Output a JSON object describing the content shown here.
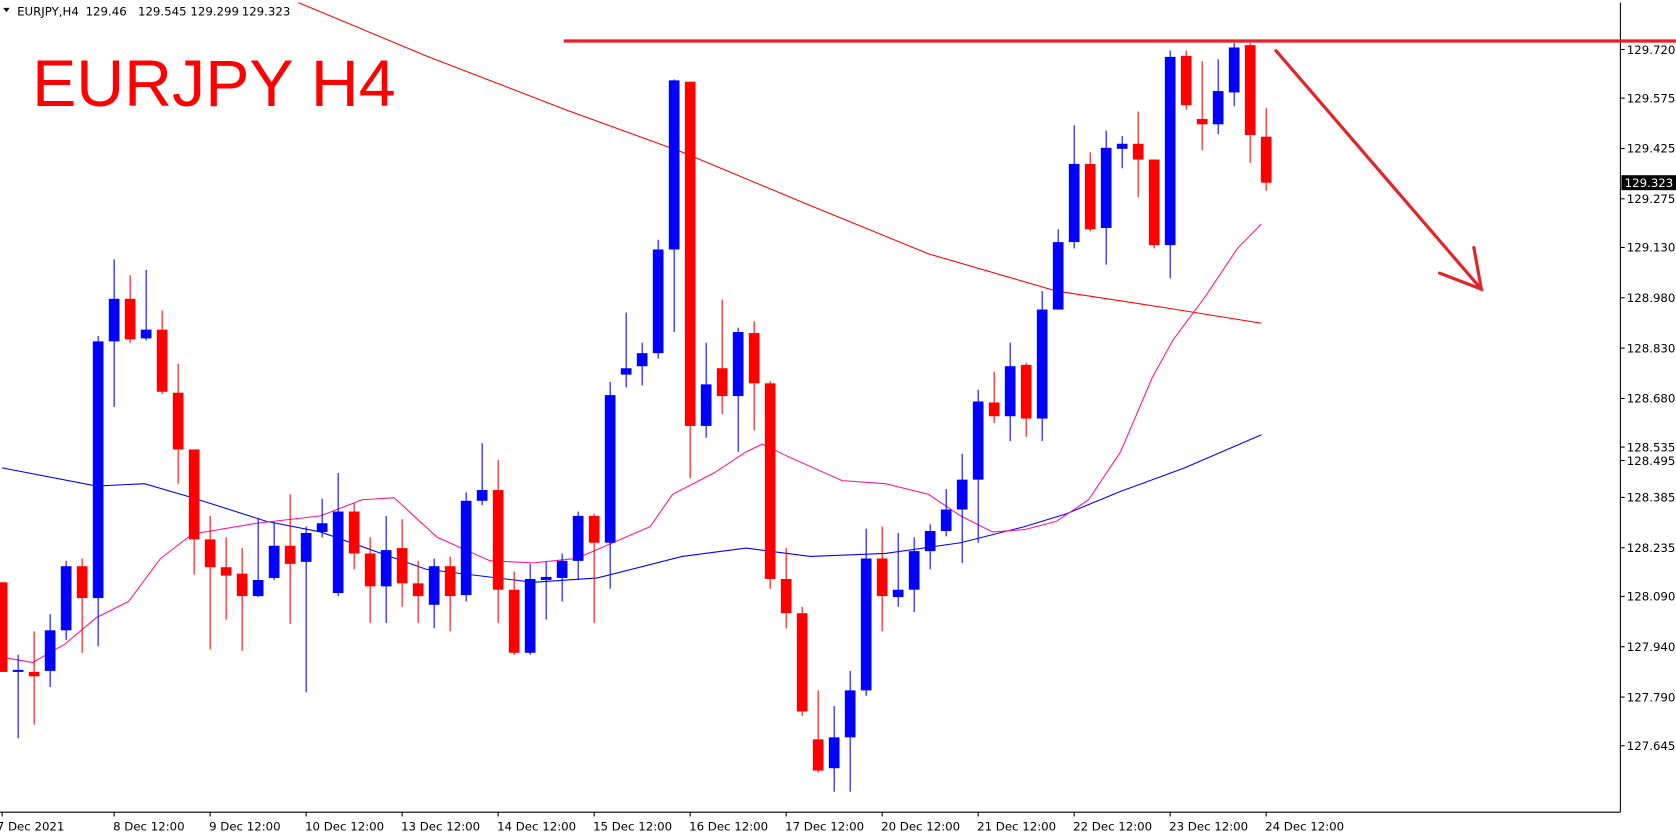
{
  "chart_data": {
    "type": "candlestick",
    "title": "EURJPY H4",
    "symbol": "EURJPY,H4",
    "up_color": "#0000ff",
    "down_color": "#ff0000",
    "categories": [
      "7 Dec 2021",
      null,
      null,
      null,
      null,
      null,
      null,
      "8 Dec 12:00",
      null,
      null,
      null,
      null,
      null,
      "9 Dec 12:00",
      null,
      null,
      null,
      null,
      null,
      "10 Dec 12:00",
      null,
      null,
      null,
      null,
      null,
      "13 Dec 12:00",
      null,
      null,
      null,
      null,
      null,
      "14 Dec 12:00",
      null,
      null,
      null,
      null,
      null,
      "15 Dec 12:00",
      null,
      null,
      null,
      null,
      null,
      "16 Dec 12:00",
      null,
      null,
      null,
      null,
      null,
      "17 Dec 12:00",
      null,
      null,
      null,
      null,
      null,
      "20 Dec 12:00",
      null,
      null,
      null,
      null,
      null,
      "21 Dec 12:00",
      null,
      null,
      null,
      null,
      null,
      "22 Dec 12:00",
      null,
      null,
      null,
      null,
      null,
      "23 Dec 12:00",
      null,
      null,
      null,
      null,
      null,
      "24 Dec 12:00"
    ],
    "open": [
      128.132,
      127.865,
      127.865,
      127.868,
      127.989,
      128.18,
      128.085,
      128.85,
      128.977,
      128.859,
      128.885,
      128.697,
      128.528,
      128.26,
      128.177,
      128.158,
      128.091,
      128.145,
      128.241,
      128.193,
      128.282,
      128.1,
      128.343,
      128.218,
      128.12,
      128.234,
      128.129,
      128.065,
      128.18,
      128.094,
      128.375,
      128.407,
      128.11,
      127.922,
      128.139,
      128.145,
      128.196,
      128.33,
      128.25,
      128.751,
      128.776,
      128.815,
      129.124,
      129.624,
      128.598,
      128.77,
      128.687,
      128.875,
      128.725,
      128.142,
      128.04,
      127.664,
      127.578,
      127.67,
      127.81,
      128.203,
      128.088,
      128.11,
      128.225,
      128.285,
      128.349,
      128.438,
      128.668,
      128.627,
      128.78,
      128.62,
      128.945,
      129.146,
      129.379,
      129.188,
      129.424,
      129.439,
      129.392,
      129.137,
      129.701,
      129.513,
      129.497,
      129.592,
      129.733,
      129.46
    ],
    "high": [
      128.132,
      127.916,
      127.986,
      128.037,
      128.196,
      128.203,
      128.866,
      129.095,
      129.047,
      129.063,
      128.942,
      128.783,
      128.528,
      128.33,
      128.266,
      128.234,
      128.324,
      128.311,
      128.394,
      128.298,
      128.381,
      128.458,
      128.368,
      128.266,
      128.33,
      128.32,
      128.196,
      128.203,
      128.209,
      128.4,
      128.547,
      128.496,
      128.164,
      128.187,
      128.193,
      128.218,
      128.343,
      128.336,
      128.729,
      128.936,
      128.846,
      129.153,
      129.631,
      129.624,
      128.846,
      128.974,
      128.891,
      128.91,
      128.732,
      128.234,
      128.059,
      127.81,
      127.763,
      127.868,
      128.292,
      128.298,
      128.279,
      128.266,
      128.305,
      128.41,
      128.515,
      128.706,
      128.76,
      128.846,
      128.786,
      129.0,
      129.184,
      129.494,
      129.414,
      129.478,
      129.462,
      129.535,
      129.392,
      129.717,
      129.717,
      129.685,
      129.691,
      129.739,
      129.739,
      129.545
    ],
    "low": [
      127.865,
      127.667,
      127.708,
      127.82,
      127.96,
      127.922,
      127.941,
      128.655,
      128.846,
      128.853,
      128.693,
      128.426,
      128.155,
      127.932,
      128.021,
      127.928,
      128.088,
      128.139,
      128.008,
      127.804,
      128.266,
      128.091,
      128.171,
      128.011,
      128.011,
      128.059,
      128.011,
      127.995,
      127.986,
      128.075,
      128.362,
      128.011,
      127.916,
      127.916,
      128.021,
      128.075,
      128.139,
      128.011,
      128.113,
      128.713,
      128.719,
      128.799,
      128.878,
      128.442,
      128.563,
      128.633,
      128.521,
      128.585,
      128.113,
      127.995,
      127.734,
      127.565,
      127.508,
      127.508,
      127.794,
      127.986,
      128.059,
      128.043,
      128.171,
      128.269,
      128.19,
      128.25,
      128.607,
      128.553,
      128.566,
      128.553,
      128.945,
      129.127,
      129.178,
      129.079,
      129.366,
      129.28,
      129.127,
      129.038,
      129.541,
      129.42,
      129.468,
      129.551,
      129.382,
      129.299
    ],
    "close": [
      127.865,
      127.871,
      127.852,
      127.989,
      128.18,
      128.085,
      128.85,
      128.977,
      128.856,
      128.885,
      128.7,
      128.528,
      128.26,
      128.177,
      128.152,
      128.091,
      128.139,
      128.241,
      128.187,
      128.279,
      128.308,
      128.343,
      128.218,
      128.12,
      128.228,
      128.129,
      128.091,
      128.18,
      128.091,
      128.375,
      128.407,
      128.11,
      127.922,
      128.142,
      128.148,
      128.196,
      128.33,
      128.25,
      128.69,
      128.77,
      128.815,
      129.124,
      129.628,
      128.598,
      128.722,
      128.687,
      128.878,
      128.725,
      128.142,
      128.04,
      127.747,
      127.571,
      127.67,
      127.81,
      128.203,
      128.091,
      128.11,
      128.225,
      128.285,
      128.349,
      128.438,
      128.671,
      128.627,
      128.776,
      128.62,
      128.945,
      129.146,
      129.379,
      129.184,
      129.427,
      129.439,
      129.392,
      129.137,
      129.698,
      129.554,
      129.497,
      129.596,
      129.726,
      129.465,
      129.323
    ],
    "lines": [
      {
        "color": "#ff0000",
        "x": [
          18.5,
          26.5,
          35.2,
          42.5,
          50.5,
          57.9,
          65.9,
          72.5,
          78.7
        ],
        "values": [
          129.86,
          129.701,
          129.541,
          129.414,
          129.255,
          129.111,
          129.0,
          128.952,
          128.904
        ]
      },
      {
        "color": "#0000ff",
        "x": [
          0,
          5.9,
          8.9,
          11.9,
          16.5,
          19.9,
          26.5,
          33.2,
          37.2,
          42.5,
          46.5,
          50.5,
          55.2,
          59.9,
          63.9,
          66.5,
          69.9,
          73.9,
          78.7
        ],
        "values": [
          128.473,
          128.419,
          128.426,
          128.384,
          128.314,
          128.282,
          128.171,
          128.132,
          128.145,
          128.209,
          128.234,
          128.209,
          128.218,
          128.25,
          128.298,
          128.336,
          128.403,
          128.473,
          128.572
        ]
      },
      {
        "color": "#ff1493",
        "x": [
          0,
          1.9,
          3.9,
          5.9,
          7.9,
          9.9,
          11.9,
          15.9,
          19.9,
          22.5,
          24.5,
          27.2,
          30.5,
          33.2,
          35.9,
          38.5,
          40.5,
          41.9,
          44.5,
          46.5,
          47.5,
          49.2,
          52.5,
          55.2,
          57.9,
          59.9,
          61.9,
          63.9,
          65.9,
          67.9,
          69.9,
          71.9,
          73.2,
          75.2,
          77.2,
          78.7
        ],
        "values": [
          127.909,
          127.893,
          127.947,
          128.027,
          128.075,
          128.203,
          128.276,
          128.308,
          128.33,
          128.378,
          128.384,
          128.266,
          128.196,
          128.19,
          128.203,
          128.257,
          128.298,
          128.394,
          128.458,
          128.521,
          128.544,
          128.505,
          128.435,
          128.426,
          128.394,
          128.33,
          128.282,
          128.289,
          128.314,
          128.378,
          128.521,
          128.744,
          128.856,
          128.984,
          129.127,
          129.2
        ]
      }
    ],
    "ylim": [
      127.447,
      129.86
    ],
    "yticks": [
      {
        "value": 129.72,
        "label": "129.720"
      },
      129.575,
      129.425,
      129.275,
      {
        "value": 129.13,
        "label": "129.130"
      },
      {
        "value": 128.98,
        "label": "128.980"
      },
      {
        "value": 128.83,
        "label": "128.830"
      },
      {
        "value": 128.68,
        "label": "128.680"
      },
      128.535,
      128.385,
      128.235,
      {
        "value": 128.09,
        "label": "128.090"
      },
      {
        "value": 127.94,
        "label": "127.940"
      },
      {
        "value": 127.79,
        "label": "127.790"
      },
      127.645,
      128.495
    ]
  }
}
